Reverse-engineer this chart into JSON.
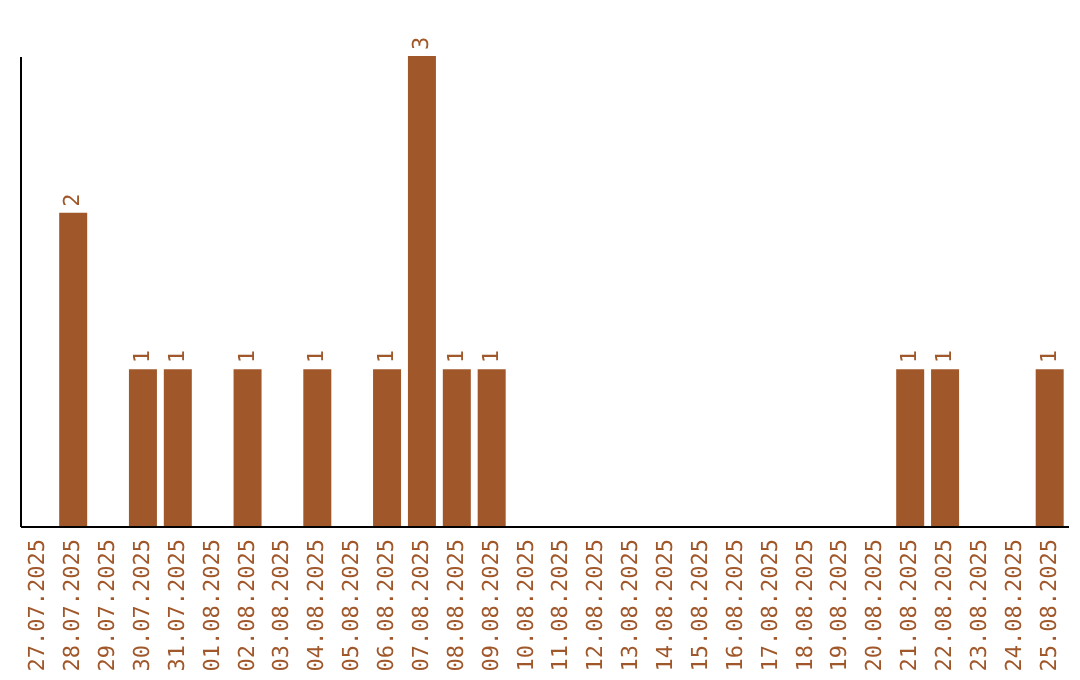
{
  "chart_data": {
    "type": "bar",
    "categories": [
      "27.07.2025",
      "28.07.2025",
      "29.07.2025",
      "30.07.2025",
      "31.07.2025",
      "01.08.2025",
      "02.08.2025",
      "03.08.2025",
      "04.08.2025",
      "05.08.2025",
      "06.08.2025",
      "07.08.2025",
      "08.08.2025",
      "09.08.2025",
      "10.08.2025",
      "11.08.2025",
      "12.08.2025",
      "13.08.2025",
      "14.08.2025",
      "15.08.2025",
      "16.08.2025",
      "17.08.2025",
      "18.08.2025",
      "19.08.2025",
      "20.08.2025",
      "21.08.2025",
      "22.08.2025",
      "23.08.2025",
      "24.08.2025",
      "25.08.2025"
    ],
    "values": [
      0,
      2,
      0,
      1,
      1,
      0,
      1,
      0,
      1,
      0,
      1,
      3,
      1,
      1,
      0,
      0,
      0,
      0,
      0,
      0,
      0,
      0,
      0,
      0,
      0,
      1,
      1,
      0,
      0,
      1
    ],
    "value_labels": [
      null,
      "2",
      null,
      "1",
      "1",
      null,
      "1",
      null,
      "1",
      null,
      "1",
      "3",
      "1",
      "1",
      null,
      null,
      null,
      null,
      null,
      null,
      null,
      null,
      null,
      null,
      null,
      "1",
      "1",
      null,
      null,
      "1"
    ],
    "color": "#a0572a",
    "tick_labels": "x",
    "grid": false
  }
}
